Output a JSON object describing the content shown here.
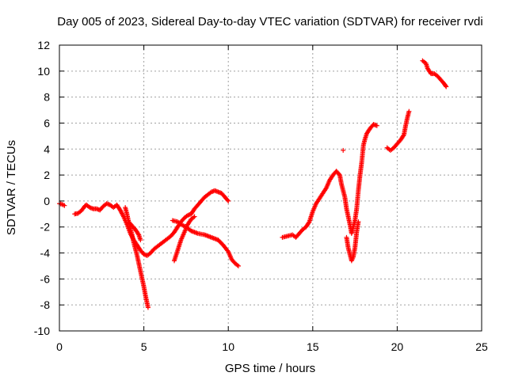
{
  "chart_data": {
    "type": "scatter",
    "title": "Day 005 of 2023, Sidereal Day-to-day VTEC variation (SDTVAR) for receiver rvdi",
    "xlabel": "GPS time / hours",
    "ylabel": "SDTVAR / TECUs",
    "xlim": [
      0,
      25
    ],
    "ylim": [
      -10,
      12
    ],
    "xticks": [
      "0",
      "5",
      "10",
      "15",
      "20",
      "25"
    ],
    "yticks": [
      "-10",
      "-8",
      "-6",
      "-4",
      "-2",
      "0",
      "2",
      "4",
      "6",
      "8",
      "10",
      "12"
    ],
    "grid": true,
    "marker": "plus",
    "color": "#ff0000",
    "segments": [
      [
        [
          0.0,
          -0.2
        ],
        [
          0.15,
          -0.25
        ],
        [
          0.3,
          -0.35
        ]
      ],
      [
        [
          0.9,
          -1.0
        ],
        [
          1.1,
          -0.95
        ],
        [
          1.3,
          -0.75
        ],
        [
          1.5,
          -0.4
        ],
        [
          1.6,
          -0.3
        ],
        [
          1.8,
          -0.5
        ],
        [
          2.0,
          -0.6
        ],
        [
          2.2,
          -0.6
        ],
        [
          2.4,
          -0.7
        ],
        [
          2.6,
          -0.4
        ],
        [
          2.8,
          -0.2
        ],
        [
          3.0,
          -0.3
        ],
        [
          3.2,
          -0.5
        ],
        [
          3.4,
          -0.3
        ],
        [
          3.6,
          -0.7
        ],
        [
          3.8,
          -1.2
        ],
        [
          4.0,
          -1.8
        ],
        [
          4.2,
          -2.5
        ],
        [
          4.4,
          -3.0
        ],
        [
          4.6,
          -3.4
        ],
        [
          4.8,
          -3.8
        ],
        [
          5.0,
          -4.1
        ],
        [
          5.2,
          -4.2
        ],
        [
          5.4,
          -4.0
        ],
        [
          5.6,
          -3.7
        ],
        [
          5.8,
          -3.5
        ],
        [
          6.0,
          -3.3
        ],
        [
          6.2,
          -3.1
        ],
        [
          6.4,
          -2.9
        ],
        [
          6.6,
          -2.7
        ],
        [
          6.8,
          -2.4
        ],
        [
          7.0,
          -2.0
        ],
        [
          7.2,
          -1.6
        ],
        [
          7.4,
          -1.3
        ],
        [
          7.6,
          -1.1
        ],
        [
          7.8,
          -1.0
        ],
        [
          8.0,
          -0.6
        ],
        [
          8.2,
          -0.3
        ],
        [
          8.4,
          0.0
        ],
        [
          8.6,
          0.3
        ],
        [
          8.8,
          0.5
        ],
        [
          9.0,
          0.7
        ],
        [
          9.2,
          0.8
        ],
        [
          9.4,
          0.7
        ],
        [
          9.6,
          0.6
        ],
        [
          9.8,
          0.3
        ],
        [
          10.0,
          0.0
        ]
      ],
      [
        [
          3.9,
          -0.5
        ],
        [
          4.0,
          -1.0
        ],
        [
          4.1,
          -1.6
        ],
        [
          4.2,
          -2.1
        ],
        [
          4.3,
          -2.6
        ],
        [
          4.4,
          -3.2
        ],
        [
          4.5,
          -3.7
        ],
        [
          4.6,
          -4.2
        ],
        [
          4.7,
          -4.8
        ],
        [
          4.8,
          -5.4
        ],
        [
          4.9,
          -6.0
        ],
        [
          5.0,
          -6.6
        ],
        [
          5.1,
          -7.3
        ],
        [
          5.2,
          -7.9
        ],
        [
          5.25,
          -8.2
        ]
      ],
      [
        [
          4.1,
          -1.6
        ],
        [
          4.3,
          -1.9
        ],
        [
          4.5,
          -2.2
        ],
        [
          4.7,
          -2.6
        ],
        [
          4.8,
          -3.0
        ]
      ],
      [
        [
          6.7,
          -1.5
        ],
        [
          7.0,
          -1.6
        ],
        [
          7.2,
          -1.8
        ],
        [
          7.5,
          -2.0
        ],
        [
          7.8,
          -2.3
        ],
        [
          8.2,
          -2.5
        ],
        [
          8.6,
          -2.6
        ],
        [
          9.0,
          -2.8
        ],
        [
          9.4,
          -3.0
        ],
        [
          9.7,
          -3.4
        ],
        [
          10.0,
          -3.9
        ],
        [
          10.2,
          -4.5
        ],
        [
          10.4,
          -4.8
        ],
        [
          10.6,
          -5.0
        ]
      ],
      [
        [
          6.8,
          -4.6
        ],
        [
          7.0,
          -3.8
        ],
        [
          7.2,
          -3.0
        ],
        [
          7.4,
          -2.4
        ],
        [
          7.6,
          -1.8
        ],
        [
          7.8,
          -1.4
        ],
        [
          8.0,
          -1.2
        ]
      ],
      [
        [
          13.2,
          -2.8
        ],
        [
          13.5,
          -2.7
        ],
        [
          13.8,
          -2.6
        ],
        [
          14.0,
          -2.8
        ],
        [
          14.2,
          -2.5
        ],
        [
          14.4,
          -2.2
        ],
        [
          14.6,
          -2.0
        ],
        [
          14.8,
          -1.6
        ],
        [
          15.0,
          -0.8
        ],
        [
          15.2,
          -0.2
        ],
        [
          15.5,
          0.4
        ],
        [
          15.8,
          1.0
        ],
        [
          16.0,
          1.6
        ],
        [
          16.2,
          2.0
        ],
        [
          16.4,
          2.3
        ],
        [
          16.6,
          2.0
        ],
        [
          16.7,
          1.3
        ],
        [
          16.8,
          0.8
        ],
        [
          16.9,
          0.3
        ],
        [
          17.0,
          -0.6
        ],
        [
          17.1,
          -1.2
        ],
        [
          17.2,
          -1.8
        ],
        [
          17.3,
          -2.5
        ],
        [
          17.4,
          -2.0
        ],
        [
          17.5,
          -1.5
        ],
        [
          17.6,
          -0.6
        ],
        [
          17.7,
          0.8
        ],
        [
          17.8,
          2.0
        ],
        [
          17.9,
          3.0
        ],
        [
          18.0,
          4.3
        ],
        [
          18.1,
          4.8
        ],
        [
          18.2,
          5.2
        ],
        [
          18.4,
          5.6
        ],
        [
          18.6,
          5.9
        ],
        [
          18.8,
          5.8
        ]
      ],
      [
        [
          17.0,
          -2.8
        ],
        [
          17.1,
          -3.6
        ],
        [
          17.2,
          -4.1
        ],
        [
          17.3,
          -4.6
        ],
        [
          17.4,
          -4.3
        ],
        [
          17.5,
          -3.6
        ],
        [
          17.6,
          -2.4
        ],
        [
          17.7,
          -1.6
        ]
      ],
      [
        [
          16.8,
          3.9
        ]
      ],
      [
        [
          19.4,
          4.1
        ],
        [
          19.6,
          3.9
        ],
        [
          19.8,
          4.1
        ],
        [
          20.0,
          4.4
        ],
        [
          20.2,
          4.7
        ],
        [
          20.4,
          5.1
        ],
        [
          20.5,
          5.8
        ],
        [
          20.6,
          6.4
        ],
        [
          20.7,
          6.9
        ]
      ],
      [
        [
          21.5,
          10.8
        ],
        [
          21.7,
          10.6
        ],
        [
          21.8,
          10.2
        ],
        [
          22.0,
          9.8
        ],
        [
          22.2,
          9.8
        ],
        [
          22.4,
          9.6
        ],
        [
          22.6,
          9.3
        ],
        [
          22.8,
          9.0
        ],
        [
          22.9,
          8.8
        ]
      ]
    ]
  }
}
